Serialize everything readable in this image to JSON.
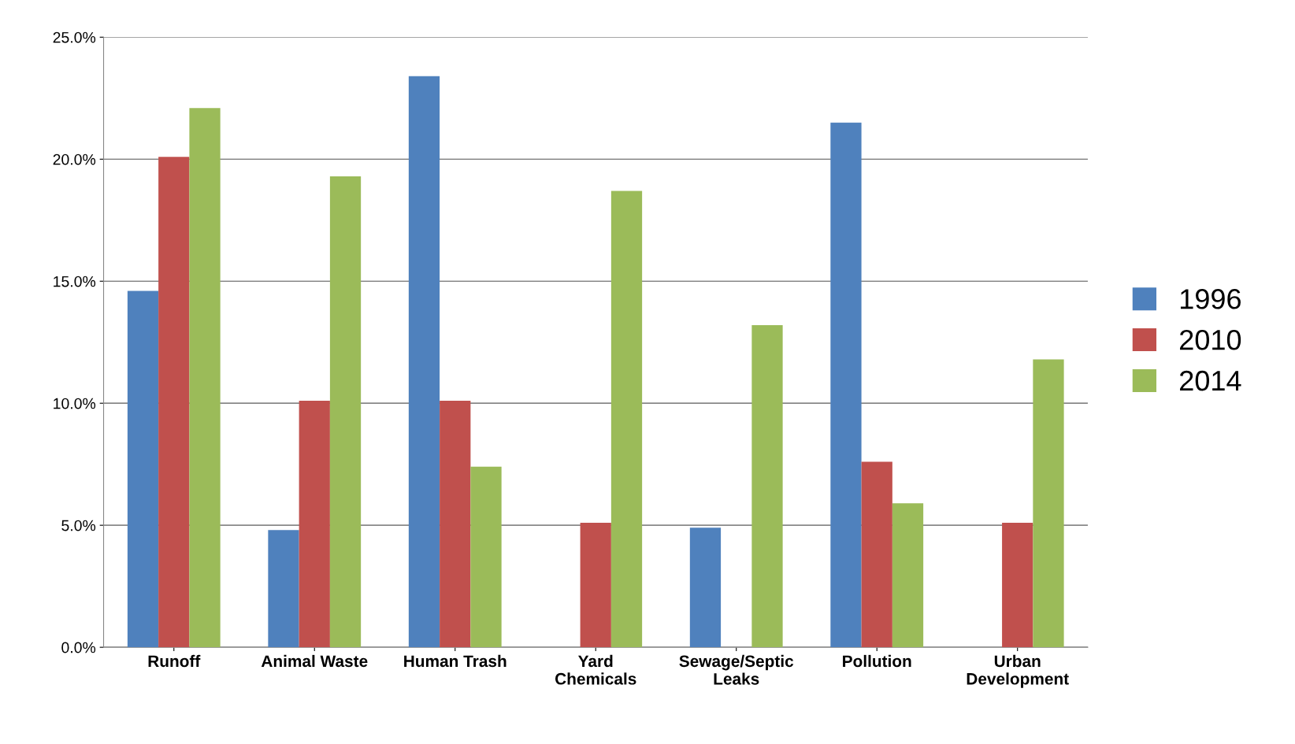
{
  "chart_data": {
    "type": "bar",
    "categories": [
      "Runoff",
      "Animal Waste",
      "Human Trash",
      "Yard\nChemicals",
      "Sewage/Septic\nLeaks",
      "Pollution",
      "Urban\nDevelopment"
    ],
    "series": [
      {
        "name": "1996",
        "color": "#4f81bd",
        "values": [
          14.6,
          4.8,
          23.4,
          0,
          4.9,
          21.5,
          0
        ]
      },
      {
        "name": "2010",
        "color": "#c0504d",
        "values": [
          20.1,
          10.1,
          10.1,
          5.1,
          0,
          7.6,
          5.1
        ]
      },
      {
        "name": "2014",
        "color": "#9bbb59",
        "values": [
          22.1,
          19.3,
          7.4,
          18.7,
          13.2,
          5.9,
          11.8
        ]
      }
    ],
    "ylim": [
      0,
      25
    ],
    "yticks": [
      {
        "value": 0,
        "label": "0.0%"
      },
      {
        "value": 5,
        "label": "5.0%"
      },
      {
        "value": 10,
        "label": "10.0%"
      },
      {
        "value": 15,
        "label": "15.0%"
      },
      {
        "value": 20,
        "label": "20.0%"
      },
      {
        "value": 25,
        "label": "25.0%"
      }
    ],
    "grid": "y",
    "legend": "right"
  }
}
